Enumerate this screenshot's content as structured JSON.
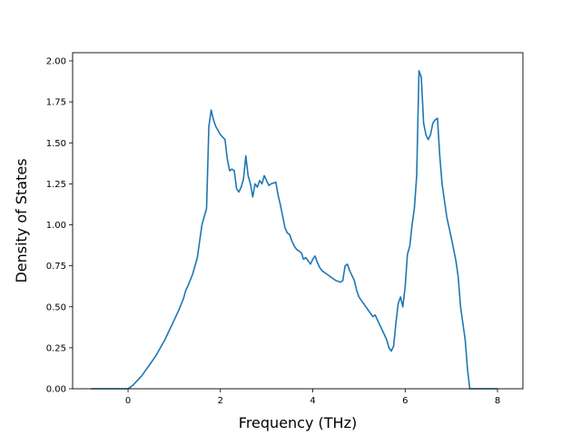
{
  "chart_data": {
    "type": "line",
    "title": "",
    "xlabel": "Frequency (THz)",
    "ylabel": "Density of States",
    "xlim": [
      -1.2,
      8.55
    ],
    "ylim": [
      0,
      2.05
    ],
    "xticks": [
      0,
      2,
      4,
      6,
      8
    ],
    "xtick_labels": [
      "0",
      "2",
      "4",
      "6",
      "8"
    ],
    "yticks": [
      0,
      0.25,
      0.5,
      0.75,
      1.0,
      1.25,
      1.5,
      1.75,
      2.0
    ],
    "ytick_labels": [
      "0.00",
      "0.25",
      "0.50",
      "0.75",
      "1.00",
      "1.25",
      "1.50",
      "1.75",
      "2.00"
    ],
    "grid": false,
    "line_color": "#1f77b4",
    "series": [
      {
        "x": [
          -0.8,
          -0.4,
          0.0,
          0.05,
          0.1,
          0.2,
          0.3,
          0.4,
          0.5,
          0.6,
          0.7,
          0.8,
          0.9,
          1.0,
          1.1,
          1.2,
          1.25,
          1.3,
          1.4,
          1.5,
          1.55,
          1.6,
          1.65,
          1.7,
          1.75,
          1.8,
          1.85,
          1.9,
          2.0,
          2.1,
          2.15,
          2.2,
          2.25,
          2.3,
          2.35,
          2.4,
          2.45,
          2.5,
          2.55,
          2.6,
          2.65,
          2.7,
          2.75,
          2.8,
          2.85,
          2.9,
          2.95,
          3.0,
          3.05,
          3.1,
          3.2,
          3.25,
          3.3,
          3.35,
          3.4,
          3.45,
          3.5,
          3.55,
          3.6,
          3.65,
          3.7,
          3.75,
          3.8,
          3.85,
          3.9,
          3.95,
          4.0,
          4.05,
          4.1,
          4.15,
          4.2,
          4.3,
          4.4,
          4.5,
          4.6,
          4.65,
          4.7,
          4.75,
          4.8,
          4.85,
          4.9,
          4.95,
          5.0,
          5.1,
          5.2,
          5.3,
          5.35,
          5.4,
          5.5,
          5.6,
          5.65,
          5.7,
          5.75,
          5.8,
          5.85,
          5.9,
          5.95,
          6.0,
          6.05,
          6.1,
          6.15,
          6.2,
          6.25,
          6.3,
          6.35,
          6.4,
          6.45,
          6.5,
          6.55,
          6.6,
          6.65,
          6.7,
          6.75,
          6.8,
          6.85,
          6.9,
          7.0,
          7.1,
          7.15,
          7.2,
          7.25,
          7.3,
          7.35,
          7.4,
          7.6,
          8.0
        ],
        "y": [
          0.0,
          0.0,
          0.0,
          0.01,
          0.02,
          0.05,
          0.08,
          0.12,
          0.16,
          0.2,
          0.25,
          0.3,
          0.36,
          0.42,
          0.48,
          0.55,
          0.6,
          0.63,
          0.7,
          0.8,
          0.9,
          1.0,
          1.05,
          1.1,
          1.6,
          1.7,
          1.64,
          1.6,
          1.55,
          1.52,
          1.4,
          1.33,
          1.34,
          1.33,
          1.22,
          1.2,
          1.23,
          1.28,
          1.42,
          1.3,
          1.25,
          1.17,
          1.25,
          1.23,
          1.27,
          1.25,
          1.3,
          1.27,
          1.24,
          1.25,
          1.26,
          1.18,
          1.12,
          1.05,
          0.98,
          0.95,
          0.94,
          0.9,
          0.87,
          0.85,
          0.84,
          0.83,
          0.79,
          0.8,
          0.78,
          0.76,
          0.79,
          0.81,
          0.77,
          0.74,
          0.72,
          0.7,
          0.68,
          0.66,
          0.65,
          0.66,
          0.75,
          0.76,
          0.72,
          0.69,
          0.66,
          0.6,
          0.56,
          0.52,
          0.48,
          0.44,
          0.45,
          0.42,
          0.36,
          0.3,
          0.25,
          0.23,
          0.26,
          0.4,
          0.52,
          0.56,
          0.5,
          0.62,
          0.82,
          0.87,
          1.0,
          1.1,
          1.3,
          1.94,
          1.9,
          1.62,
          1.55,
          1.52,
          1.55,
          1.62,
          1.64,
          1.65,
          1.42,
          1.25,
          1.15,
          1.05,
          0.92,
          0.78,
          0.68,
          0.5,
          0.4,
          0.3,
          0.12,
          0.0,
          0.0,
          0.0
        ]
      }
    ]
  }
}
